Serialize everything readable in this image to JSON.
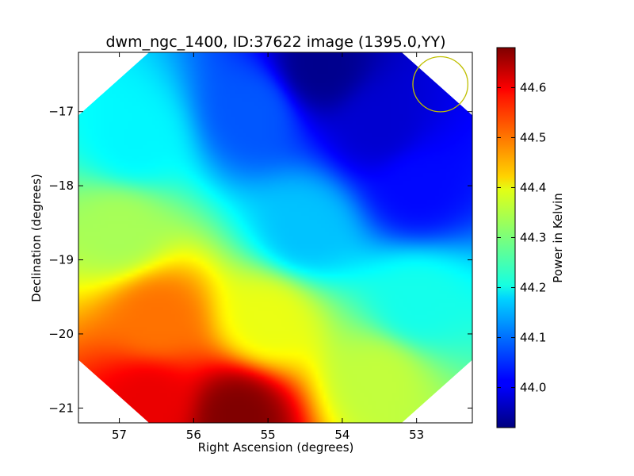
{
  "chart_data": {
    "type": "heatmap",
    "title": "dwm_ngc_1400, ID:37622 image (1395.0,YY)",
    "xlabel": "Right Ascension (degrees)",
    "ylabel": "Declination (degrees)",
    "colorbar_label": "Power in Kelvin",
    "colormap": "jet",
    "xlim": [
      57.55,
      52.25
    ],
    "ylim": [
      -21.2,
      -16.2
    ],
    "x_ticks": [
      57,
      56,
      55,
      54,
      53
    ],
    "y_ticks": [
      -17,
      -18,
      -19,
      -20,
      -21
    ],
    "colorbar_range": [
      43.92,
      44.68
    ],
    "colorbar_ticks": [
      44.0,
      44.1,
      44.2,
      44.3,
      44.4,
      44.5,
      44.6
    ],
    "grid": false,
    "footprint_polygon": [
      [
        56.6,
        -16.2
      ],
      [
        53.2,
        -16.2
      ],
      [
        52.25,
        -17.05
      ],
      [
        52.25,
        -20.35
      ],
      [
        53.2,
        -21.2
      ],
      [
        56.6,
        -21.2
      ],
      [
        57.55,
        -20.35
      ],
      [
        57.55,
        -17.05
      ]
    ],
    "value_samples": [
      {
        "ra": 54.3,
        "dec": -16.4,
        "value": 43.93
      },
      {
        "ra": 53.5,
        "dec": -17.2,
        "value": 43.98
      },
      {
        "ra": 53.0,
        "dec": -18.0,
        "value": 44.02
      },
      {
        "ra": 56.8,
        "dec": -17.4,
        "value": 44.2
      },
      {
        "ra": 55.2,
        "dec": -17.0,
        "value": 44.08
      },
      {
        "ra": 57.0,
        "dec": -18.6,
        "value": 44.33
      },
      {
        "ra": 54.5,
        "dec": -18.6,
        "value": 44.16
      },
      {
        "ra": 53.0,
        "dec": -19.6,
        "value": 44.22
      },
      {
        "ra": 56.5,
        "dec": -19.8,
        "value": 44.5
      },
      {
        "ra": 55.0,
        "dec": -19.8,
        "value": 44.38
      },
      {
        "ra": 53.5,
        "dec": -20.6,
        "value": 44.35
      },
      {
        "ra": 55.4,
        "dec": -21.1,
        "value": 44.68
      },
      {
        "ra": 56.6,
        "dec": -20.9,
        "value": 44.6
      }
    ],
    "beam_circle": {
      "ra": 52.68,
      "dec": -16.63,
      "radius_deg": 0.37,
      "color": "#bfbf00"
    }
  }
}
